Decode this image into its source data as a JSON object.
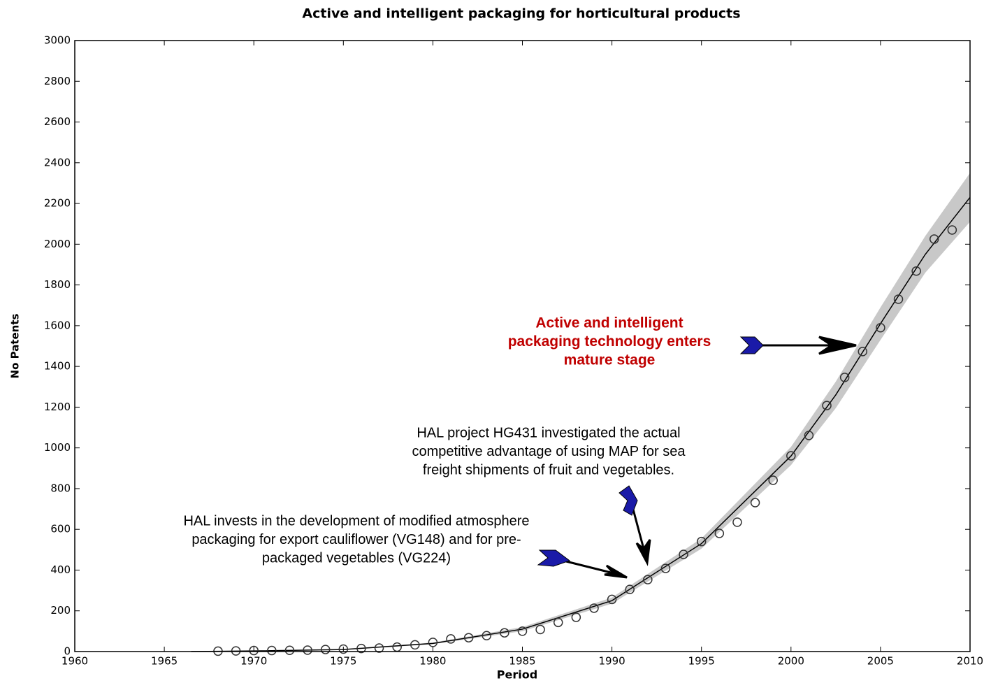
{
  "chart_data": {
    "type": "scatter",
    "title": "Active and intelligent packaging for horticultural products",
    "xlabel": "Period",
    "ylabel": "No Patents",
    "xlim": [
      1960,
      2010
    ],
    "ylim": [
      0,
      3000
    ],
    "xticks": [
      1960,
      1965,
      1970,
      1975,
      1980,
      1985,
      1990,
      1995,
      2000,
      2005,
      2010
    ],
    "yticks": [
      0,
      200,
      400,
      600,
      800,
      1000,
      1200,
      1400,
      1600,
      1800,
      2000,
      2200,
      2400,
      2600,
      2800,
      3000
    ],
    "grid": false,
    "series": [
      {
        "color": "#333333",
        "x": [
          1968,
          1969,
          1970,
          1971,
          1972,
          1973,
          1974,
          1975,
          1976,
          1977,
          1978,
          1979,
          1980,
          1981,
          1982,
          1983,
          1984,
          1985,
          1986,
          1987,
          1988,
          1989,
          1990,
          1991,
          1992,
          1993,
          1994,
          1995,
          1996,
          1997,
          1998,
          1999,
          2000,
          2001,
          2002,
          2003,
          2004,
          2005,
          2006,
          2007,
          2008,
          2009
        ],
        "values": [
          2,
          3,
          5,
          5,
          6,
          7,
          10,
          12,
          15,
          17,
          22,
          33,
          45,
          62,
          68,
          78,
          92,
          100,
          108,
          143,
          168,
          213,
          256,
          305,
          353,
          408,
          477,
          540,
          580,
          635,
          731,
          841,
          961,
          1061,
          1208,
          1346,
          1473,
          1590,
          1730,
          1868,
          2025,
          2070
        ]
      }
    ],
    "fit": {
      "color": "#000000",
      "x": [
        1966.5,
        1970,
        1975,
        1980,
        1985,
        1990,
        1995,
        2000,
        2002.5,
        2005,
        2007.5,
        2010
      ],
      "values": [
        0,
        3,
        10,
        40,
        110,
        250,
        530,
        960,
        1260,
        1610,
        1950,
        2230
      ]
    },
    "band": {
      "color": "#c8c8c8",
      "x": [
        1966.5,
        1975,
        1980,
        1985,
        1990,
        1995,
        2000,
        2002.5,
        2005,
        2007.5,
        2010
      ],
      "lower": [
        0,
        8,
        36,
        100,
        235,
        505,
        915,
        1195,
        1530,
        1860,
        2110
      ],
      "upper": [
        0,
        12,
        44,
        120,
        265,
        555,
        1005,
        1325,
        1690,
        2040,
        2350
      ]
    },
    "annotations": [
      {
        "lines": [
          "Active and intelligent",
          "packaging technology enters",
          "mature stage"
        ],
        "color": "#c00000"
      },
      {
        "lines": [
          "HAL project HG431 investigated the actual",
          "competitive advantage of using MAP for sea",
          "freight shipments of fruit and vegetables."
        ],
        "color": "#000000"
      },
      {
        "lines": [
          "HAL invests in the development of modified atmosphere",
          "packaging for export cauliflower (VG148) and for pre-",
          "packaged vegetables (VG224)"
        ],
        "color": "#000000"
      }
    ]
  }
}
